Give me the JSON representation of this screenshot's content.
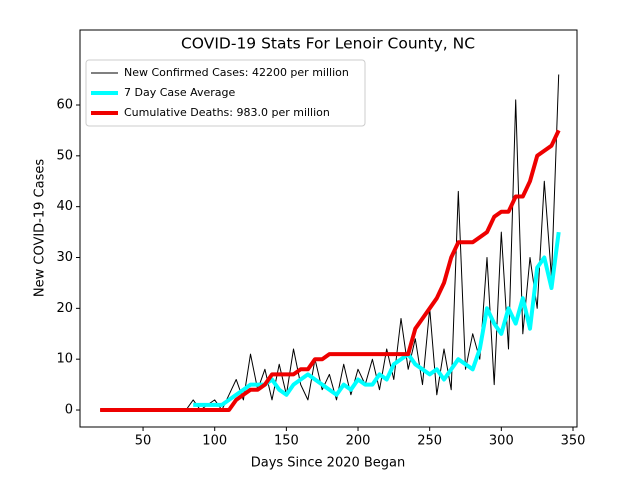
{
  "chart_data": {
    "type": "line",
    "title": "COVID-19 Stats For Lenoir County, NC",
    "xlabel": "Days Since 2020 Began",
    "ylabel": "New COVID-19 Cases",
    "x": [
      20,
      25,
      30,
      35,
      40,
      45,
      50,
      55,
      60,
      65,
      70,
      75,
      80,
      85,
      90,
      95,
      100,
      105,
      110,
      115,
      120,
      125,
      130,
      135,
      140,
      145,
      150,
      155,
      160,
      165,
      170,
      175,
      180,
      185,
      190,
      195,
      200,
      205,
      210,
      215,
      220,
      225,
      230,
      235,
      240,
      245,
      250,
      255,
      260,
      265,
      270,
      275,
      280,
      285,
      290,
      295,
      300,
      305,
      310,
      315,
      320,
      325,
      330,
      335,
      340
    ],
    "series": [
      {
        "name": "New Confirmed Cases: 42200 per million",
        "color": "#000000",
        "width": 1,
        "values": [
          0,
          0,
          0,
          0,
          0,
          0,
          0,
          0,
          0,
          0,
          0,
          0,
          0,
          2,
          0,
          1,
          2,
          0,
          3,
          6,
          2,
          11,
          4,
          8,
          2,
          9,
          3,
          12,
          5,
          2,
          10,
          4,
          7,
          2,
          9,
          3,
          8,
          5,
          10,
          4,
          12,
          6,
          18,
          8,
          14,
          5,
          20,
          3,
          12,
          4,
          43,
          8,
          15,
          10,
          30,
          5,
          35,
          12,
          61,
          15,
          30,
          20,
          45,
          26,
          66
        ]
      },
      {
        "name": "7 Day Case Average",
        "color": "#00ffff",
        "width": 4,
        "values": [
          null,
          null,
          null,
          null,
          null,
          null,
          null,
          null,
          null,
          null,
          null,
          null,
          null,
          1,
          1,
          1,
          1,
          1,
          2,
          3,
          4,
          5,
          5,
          5,
          6,
          4,
          3,
          5,
          6,
          7,
          6,
          5,
          4,
          3,
          5,
          4,
          6,
          5,
          5,
          7,
          6,
          9,
          10,
          11,
          9,
          8,
          7,
          8,
          6,
          8,
          10,
          9,
          8,
          12,
          20,
          17,
          15,
          20,
          17,
          22,
          16,
          28,
          30,
          24,
          35
        ]
      },
      {
        "name": "Cumulative Deaths: 983.0 per million",
        "color": "#ee0000",
        "width": 4,
        "values": [
          0,
          0,
          0,
          0,
          0,
          0,
          0,
          0,
          0,
          0,
          0,
          0,
          0,
          0,
          0,
          0,
          0,
          0,
          0,
          2,
          3,
          4,
          4,
          5,
          7,
          7,
          7,
          7,
          8,
          8,
          10,
          10,
          11,
          11,
          11,
          11,
          11,
          11,
          11,
          11,
          11,
          11,
          11,
          11,
          16,
          18,
          20,
          22,
          25,
          30,
          33,
          33,
          33,
          34,
          35,
          38,
          39,
          39,
          42,
          42,
          45,
          50,
          51,
          52,
          55
        ]
      }
    ],
    "xlim": [
      6,
      352.8
    ],
    "xticks": [
      50,
      100,
      150,
      200,
      250,
      300,
      350
    ],
    "ylim": [
      -3.34,
      74.75
    ],
    "yticks": [
      0,
      10,
      20,
      30,
      40,
      50,
      60
    ],
    "legend": "upper left"
  }
}
